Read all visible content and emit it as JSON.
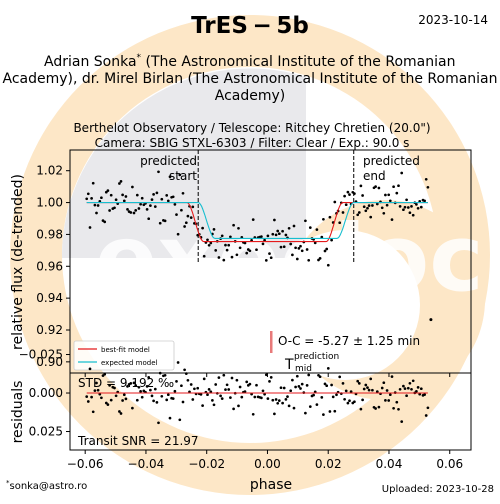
{
  "header": {
    "title": "TrES − 5b",
    "date": "2023-10-14",
    "observers_line1": "Adrian Sonka",
    "observers_line1_rest": " (The Astronomical Institute of the Romanian",
    "observers_line2": "Academy), dr. Mirel Birlan (The Astronomical Institute of the Romanian",
    "observers_line3": "Academy)",
    "observer_marker": "*",
    "observatory": "Berthelot Observatory / Telescope: Ritchey Chretien (20.0\")",
    "camera": "Camera: SBIG STXL-6303 / Filter: Clear / Exp.: 90.0 s"
  },
  "footer": {
    "contact": "sonka@astro.ro",
    "contact_marker": "*",
    "uploaded": "Uploaded: 2023-10-28"
  },
  "watermark": {
    "text": "exoclock",
    "colors": {
      "orange": "#fde7c7",
      "grey": "#e9e9ec"
    }
  },
  "chart_data": [
    {
      "type": "scatter",
      "panel": "light curve",
      "xlim": [
        -0.065,
        0.067
      ],
      "ylim": [
        0.893,
        1.033
      ],
      "ylabel": "relative flux (de-trended)",
      "yticks": [
        "1.02",
        "1.00",
        "0.98",
        "0.96",
        "0.94",
        "0.92",
        "0.90"
      ],
      "ytick_values": [
        1.02,
        1.0,
        0.98,
        0.96,
        0.94,
        0.92,
        0.9
      ],
      "grid": false,
      "legend_position": "lower-left",
      "annotations": {
        "predicted_start": {
          "label_line1": "predicted",
          "label_line2": "start",
          "x": -0.0228
        },
        "predicted_end": {
          "label_line1": "predicted",
          "label_line2": "end",
          "x": 0.0284
        },
        "oc_text": "O-C = -5.27 ± 1.25 min",
        "tmid_label": "T",
        "tmid_sup": "prediction",
        "tmid_sub": "mid"
      },
      "series": [
        {
          "name": "best-fit model",
          "color": "#e41a1c",
          "transit": {
            "ingress_x": -0.0265,
            "egress_x": 0.0248,
            "duration_edge": 0.0055,
            "depth": 0.0245,
            "baseline": 1.0
          }
        },
        {
          "name": "expected model",
          "color": "#17becf",
          "transit": {
            "ingress_x": -0.0228,
            "egress_x": 0.0284,
            "duration_edge": 0.0055,
            "depth": 0.0225,
            "baseline": 1.0
          }
        }
      ],
      "observations": {
        "color": "#000000",
        "x_start": -0.0595,
        "x_end": 0.0528,
        "count": 210,
        "outlier": {
          "x": 0.0538,
          "y": 0.9265
        }
      }
    },
    {
      "type": "scatter",
      "panel": "residuals",
      "xlim": [
        -0.065,
        0.067
      ],
      "ylim": [
        0.037,
        -0.013
      ],
      "ylabel": "residuals",
      "xlabel": "phase",
      "xticks": [
        "−0.06",
        "−0.04",
        "−0.02",
        "0.00",
        "0.02",
        "0.04",
        "0.06"
      ],
      "xtick_values": [
        -0.06,
        -0.04,
        -0.02,
        0.0,
        0.02,
        0.04,
        0.06
      ],
      "yticks": [
        "−0.025",
        "0.000",
        "0.025"
      ],
      "ytick_values": [
        -0.025,
        0.0,
        0.025
      ],
      "std_text": "STD = 9.192 ‰",
      "snr_text": "Transit SNR = 21.97",
      "zero_line_color": "#e41a1c"
    }
  ]
}
